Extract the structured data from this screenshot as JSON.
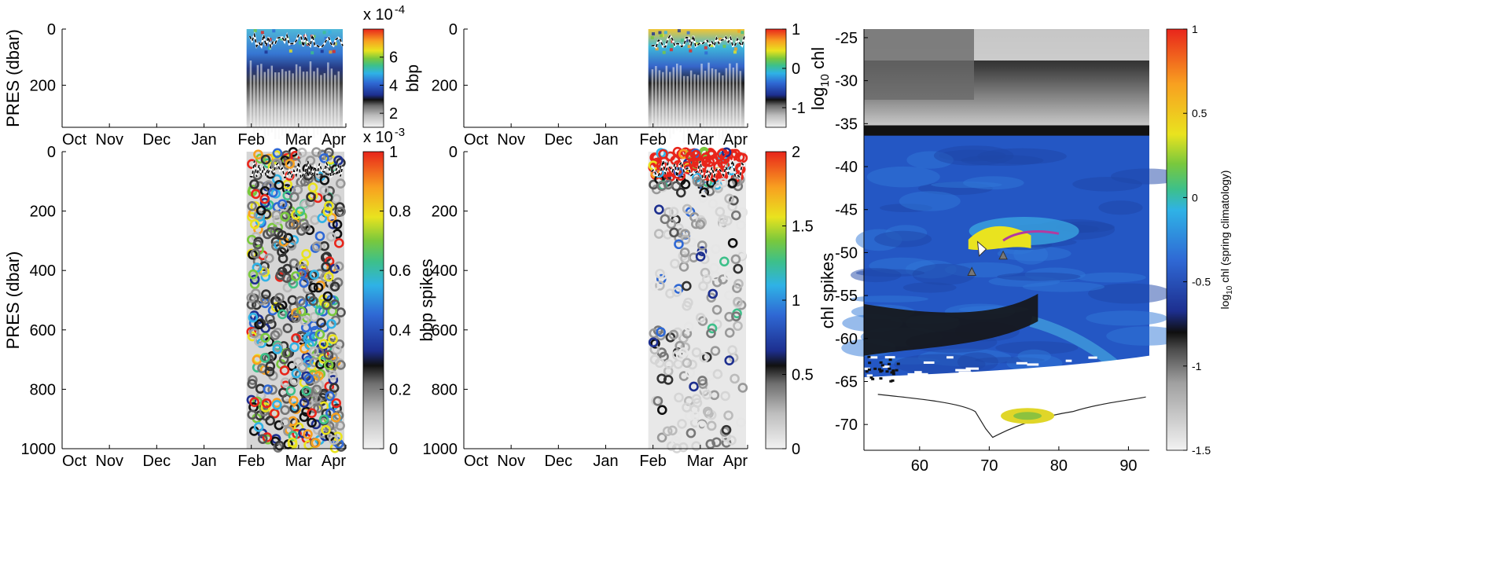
{
  "chart_data": [
    {
      "type": "scatter",
      "panel": "top-left",
      "ylabel": "PRES (dbar)",
      "y_ticks": [
        "0",
        "200"
      ],
      "ylim": [
        0,
        350
      ],
      "y_reversed": true,
      "x_ticks": [
        "Oct",
        "Nov",
        "Dec",
        "Jan",
        "Feb",
        "Mar",
        "Apr"
      ],
      "data_window": [
        "Feb",
        "Apr"
      ],
      "colorbar": {
        "label": "bbp",
        "multiplier": "x 10",
        "exponent": "-4",
        "ticks": [
          "2",
          "4",
          "6"
        ],
        "range": [
          1,
          8
        ]
      },
      "mixed_layer_line": true
    },
    {
      "type": "scatter",
      "panel": "top-middle",
      "ylabel": "",
      "y_ticks": [
        "0",
        "200"
      ],
      "ylim": [
        0,
        350
      ],
      "y_reversed": true,
      "x_ticks": [
        "Oct",
        "Nov",
        "Dec",
        "Jan",
        "Feb",
        "Mar",
        "Apr"
      ],
      "data_window": [
        "Feb",
        "Apr"
      ],
      "colorbar": {
        "label": "",
        "ticks": [
          "1",
          "0",
          "-1"
        ],
        "range": [
          -1.5,
          1
        ]
      },
      "mixed_layer_line": true
    },
    {
      "type": "scatter",
      "panel": "bottom-left",
      "ylabel": "PRES (dbar)",
      "y_ticks": [
        "0",
        "200",
        "400",
        "600",
        "800",
        "1000"
      ],
      "ylim": [
        0,
        1000
      ],
      "y_reversed": true,
      "x_ticks": [
        "Oct",
        "Nov",
        "Dec",
        "Jan",
        "Feb",
        "Mar",
        "Apr"
      ],
      "data_window": [
        "Feb",
        "Apr"
      ],
      "colorbar": {
        "label": "",
        "multiplier": "x 10",
        "exponent": "-3",
        "ticks": [
          "1",
          "0.8",
          "0.6",
          "0.4",
          "0.2",
          "0"
        ],
        "range": [
          0,
          1
        ]
      },
      "mixed_layer_line": true
    },
    {
      "type": "scatter",
      "panel": "bottom-middle",
      "ylabel": "bbp spikes",
      "y_ticks": [
        "0",
        "200",
        "400",
        "600",
        "800",
        "1000"
      ],
      "ylim": [
        0,
        1000
      ],
      "y_reversed": true,
      "x_ticks": [
        "Oct",
        "Nov",
        "Dec",
        "Jan",
        "Feb",
        "Mar",
        "Apr"
      ],
      "data_window": [
        "Feb",
        "Apr"
      ],
      "colorbar": {
        "label": "",
        "ticks": [
          "2",
          "1.5",
          "1",
          "0.5",
          "0"
        ],
        "range": [
          0,
          2
        ]
      },
      "mixed_layer_line": true
    },
    {
      "type": "heatmap",
      "panel": "map",
      "ylabel_left_parts": {
        "base": "log",
        "sub": "10",
        "rest": " chl"
      },
      "ylabel_left_lower": "chl spikes",
      "x_ticks": [
        "60",
        "70",
        "80",
        "90"
      ],
      "xlim": [
        52,
        93
      ],
      "y_ticks": [
        "-25",
        "-30",
        "-35",
        "-40",
        "-45",
        "-50",
        "-55",
        "-60",
        "-65",
        "-70"
      ],
      "ylim": [
        -73,
        -24
      ],
      "colorbar": {
        "label_parts": {
          "base": "log",
          "sub": "10",
          "rest": " chl (spring climatology)"
        },
        "ticks": [
          "1",
          "0.5",
          "0",
          "-0.5",
          "-1",
          "-1.5"
        ],
        "range": [
          -1.5,
          1
        ]
      },
      "markers": [
        "float-track",
        "triangle",
        "triangle",
        "triangle"
      ]
    }
  ]
}
